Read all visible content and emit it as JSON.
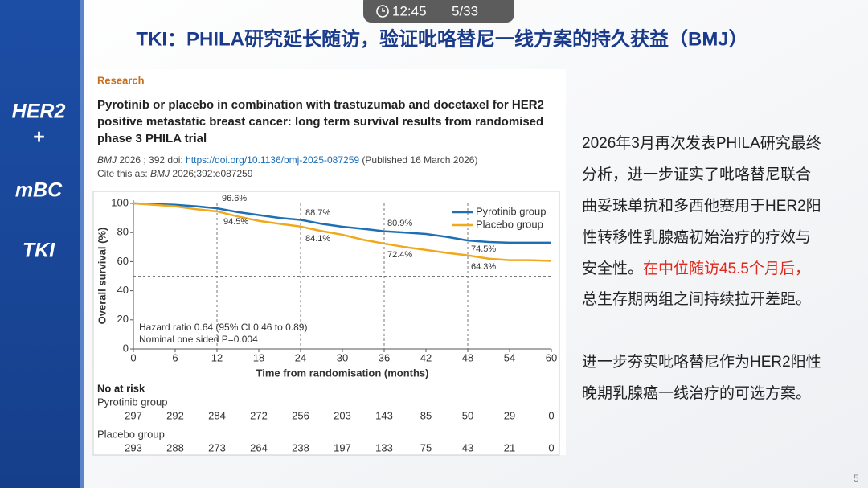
{
  "status": {
    "time": "12:45",
    "page": "5/33"
  },
  "slide_title": "TKI：PHILA研究延长随访，验证吡咯替尼一线方案的持久获益（BMJ）",
  "sidebar": [
    "HER2",
    "+",
    "mBC",
    "TKI"
  ],
  "article": {
    "section": "Research",
    "title_lines": [
      "Pyrotinib or placebo in combination with trastuzumab and docetaxel for HER2",
      "positive metastatic breast cancer: long term survival results from randomised",
      "phase 3 PHILA trial"
    ],
    "journal": "BMJ",
    "volume": "2026 ; 392",
    "doi_label": "doi:",
    "doi": "https://doi.org/10.1136/bmj-2025-087259",
    "published": "(Published 16 March 2026)",
    "cite_label": "Cite this as:",
    "cite_journal": "BMJ",
    "cite_ref": "2026;392:e087259"
  },
  "chart_data": {
    "type": "line",
    "xlabel": "Time from randomisation (months)",
    "ylabel": "Overall survival (%)",
    "x": [
      0,
      3,
      6,
      9,
      12,
      15,
      18,
      21,
      24,
      27,
      30,
      33,
      36,
      39,
      42,
      45,
      48,
      51,
      54,
      57,
      60
    ],
    "series": [
      {
        "name": "Pyrotinib group",
        "color": "#1f6fb5",
        "values": [
          100,
          99.5,
          99,
          98,
          96.6,
          94,
          92,
          90,
          88.7,
          86,
          84,
          82.5,
          80.9,
          80,
          79,
          77,
          74.5,
          73.5,
          73,
          73,
          73
        ]
      },
      {
        "name": "Placebo group",
        "color": "#f0a81c",
        "values": [
          100,
          99,
          98,
          96,
          94.5,
          91,
          88,
          86,
          84.1,
          81,
          78.5,
          75,
          72.4,
          70,
          68,
          66,
          64.3,
          62,
          61,
          61,
          60.5
        ]
      }
    ],
    "xlim": [
      0,
      60
    ],
    "xticks": [
      0,
      6,
      12,
      18,
      24,
      30,
      36,
      42,
      48,
      54,
      60
    ],
    "ylim": [
      0,
      100
    ],
    "yticks": [
      0,
      20,
      40,
      60,
      80,
      100
    ],
    "hline": 50,
    "vlines": [
      12,
      24,
      36,
      48
    ],
    "annotations": [
      "96.6%",
      "94.5%",
      "88.7%",
      "84.1%",
      "80.9%",
      "72.4%",
      "74.5%",
      "64.3%"
    ],
    "stats": [
      "Hazard ratio 0.64 (95% CI 0.46 to 0.89)",
      "Nominal one sided P=0.004"
    ],
    "legend": "upper right"
  },
  "risk_table": {
    "title": "No at risk",
    "groups": [
      {
        "name": "Pyrotinib group",
        "values": [
          "297",
          "292",
          "284",
          "272",
          "256",
          "203",
          "143",
          "85",
          "50",
          "29",
          "0"
        ]
      },
      {
        "name": "Placebo group",
        "values": [
          "293",
          "288",
          "273",
          "264",
          "238",
          "197",
          "133",
          "75",
          "43",
          "21",
          "0"
        ]
      }
    ]
  },
  "paragraph_1": [
    "2026年3月再次发表PHILA研究最终",
    "分析，进一步证实了吡咯替尼联合",
    "曲妥珠单抗和多西他赛用于HER2阳",
    "性转移性乳腺癌初始治疗的疗效与",
    "安全性。"
  ],
  "highlight": "在中位随访45.5个月后，",
  "paragraph_1_end": "总生存期两组之间持续拉开差距。",
  "paragraph_2": [
    "进一步夯实吡咯替尼作为HER2阳性",
    "晚期乳腺癌一线治疗的可选方案。"
  ],
  "page_number": "5"
}
